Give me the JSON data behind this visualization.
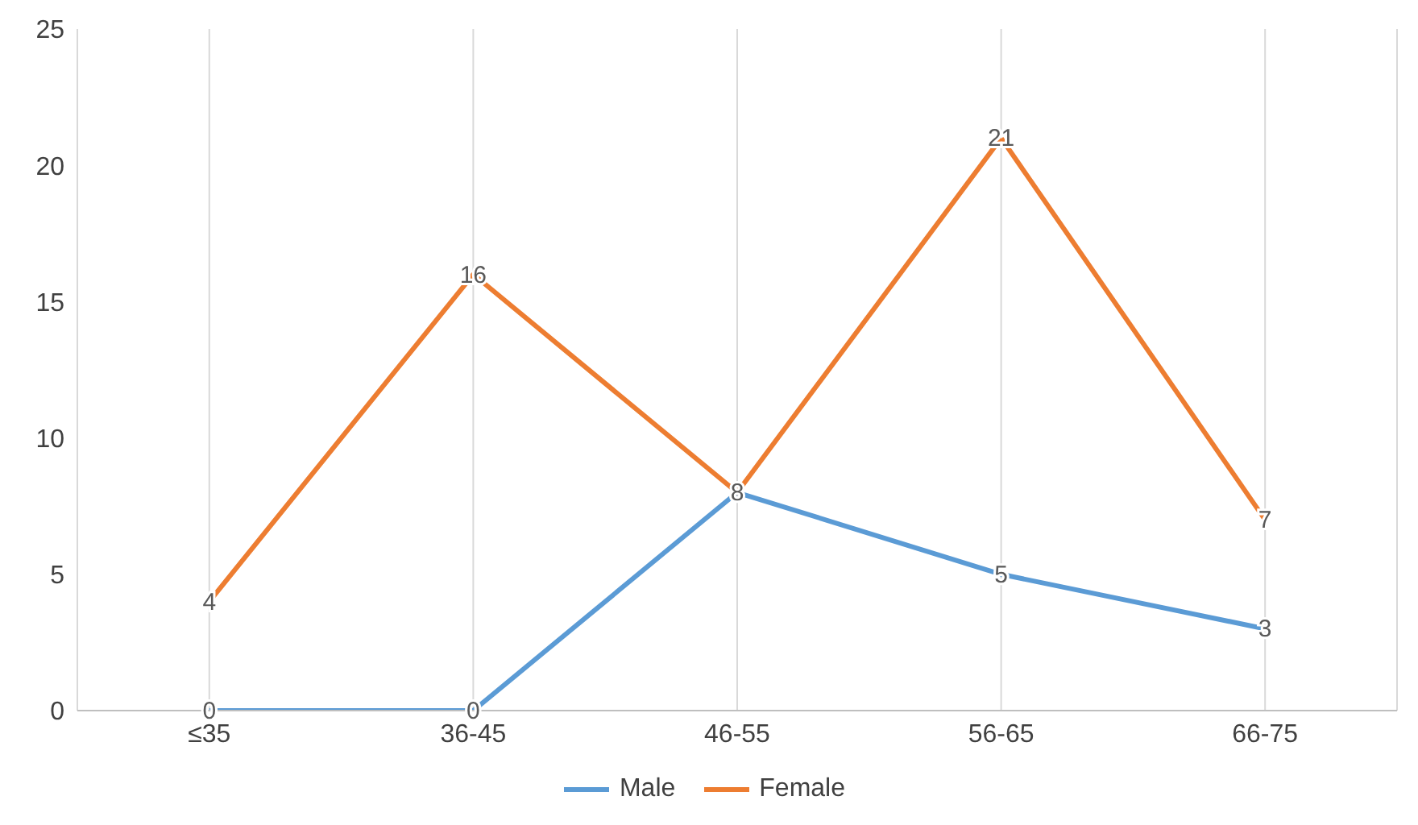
{
  "chart_data": {
    "type": "line",
    "categories": [
      "≤35",
      "36-45",
      "46-55",
      "56-65",
      "66-75"
    ],
    "series": [
      {
        "name": "Male",
        "color": "#5b9bd5",
        "values": [
          0,
          0,
          8,
          5,
          3
        ],
        "value_labels": [
          "0",
          "0",
          "8",
          "5",
          "3"
        ]
      },
      {
        "name": "Female",
        "color": "#ed7d31",
        "values": [
          4,
          16,
          8,
          21,
          7
        ],
        "value_labels": [
          "4",
          "16",
          null,
          "21",
          "7"
        ]
      }
    ],
    "ylim": [
      0,
      25
    ],
    "yticks": [
      0,
      5,
      10,
      15,
      20,
      25
    ],
    "grid": "x",
    "legend": "bottom",
    "marker": "none",
    "line_style": "solid"
  }
}
